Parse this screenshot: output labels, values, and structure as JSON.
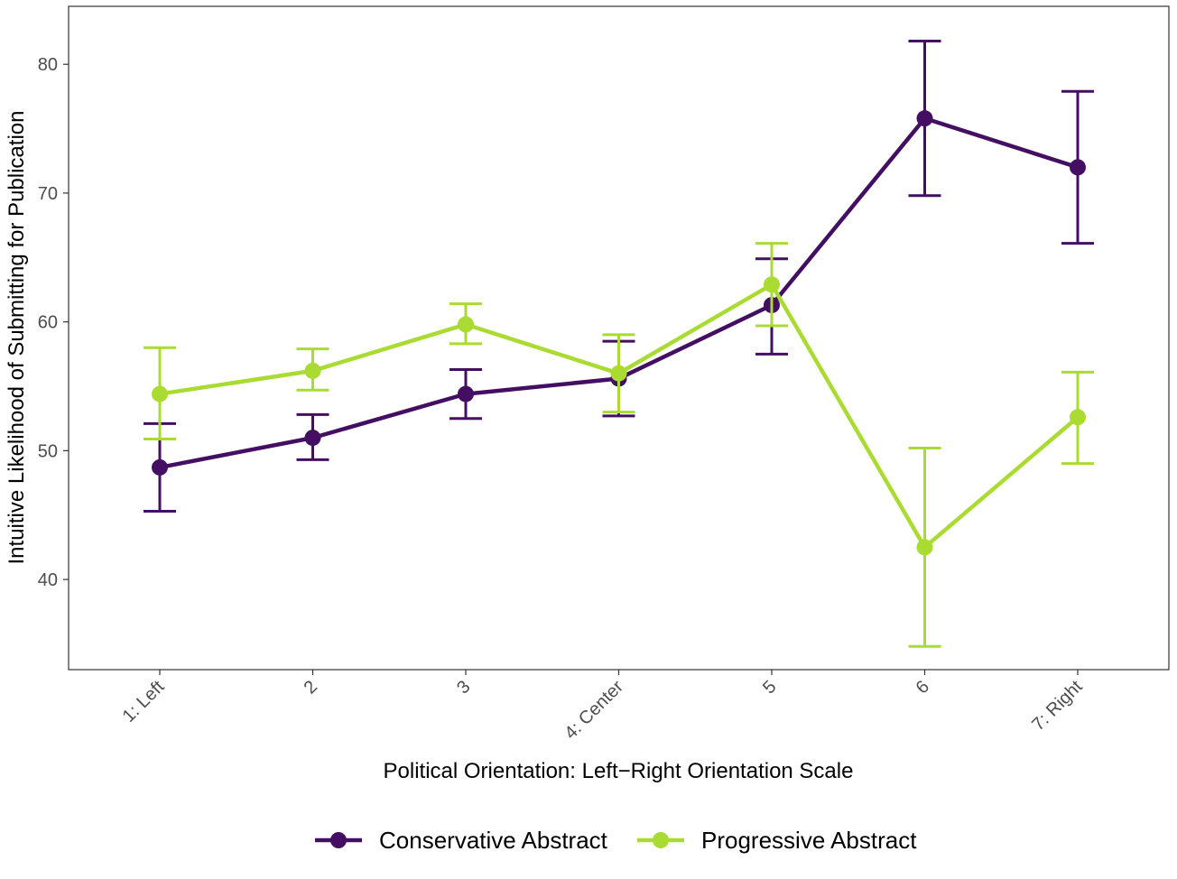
{
  "chart_data": {
    "type": "line",
    "xlabel": "Political Orientation: Left−Right Orientation Scale",
    "ylabel": "Intuitive Likelihood of Submitting for Publication",
    "categories": [
      "1: Left",
      "2",
      "3",
      "4: Center",
      "5",
      "6",
      "7: Right"
    ],
    "ylim": [
      33,
      84.5
    ],
    "yticks": [
      40,
      50,
      60,
      70,
      80
    ],
    "grid": false,
    "legend_position": "bottom",
    "series": [
      {
        "name": "Conservative Abstract",
        "color": "#440f62",
        "values": [
          48.7,
          51.0,
          54.4,
          55.6,
          61.3,
          75.8,
          72.0
        ],
        "lower": [
          45.3,
          49.3,
          52.5,
          52.7,
          57.5,
          69.8,
          66.1
        ],
        "upper": [
          52.1,
          52.8,
          56.3,
          58.5,
          64.9,
          81.8,
          77.9
        ]
      },
      {
        "name": "Progressive Abstract",
        "color": "#a9db33",
        "values": [
          54.4,
          56.2,
          59.8,
          56.0,
          62.9,
          42.5,
          52.6
        ],
        "lower": [
          50.9,
          54.7,
          58.3,
          53.0,
          59.7,
          34.8,
          49.0
        ],
        "upper": [
          58.0,
          57.9,
          61.4,
          59.0,
          66.1,
          50.2,
          56.1
        ]
      }
    ]
  }
}
